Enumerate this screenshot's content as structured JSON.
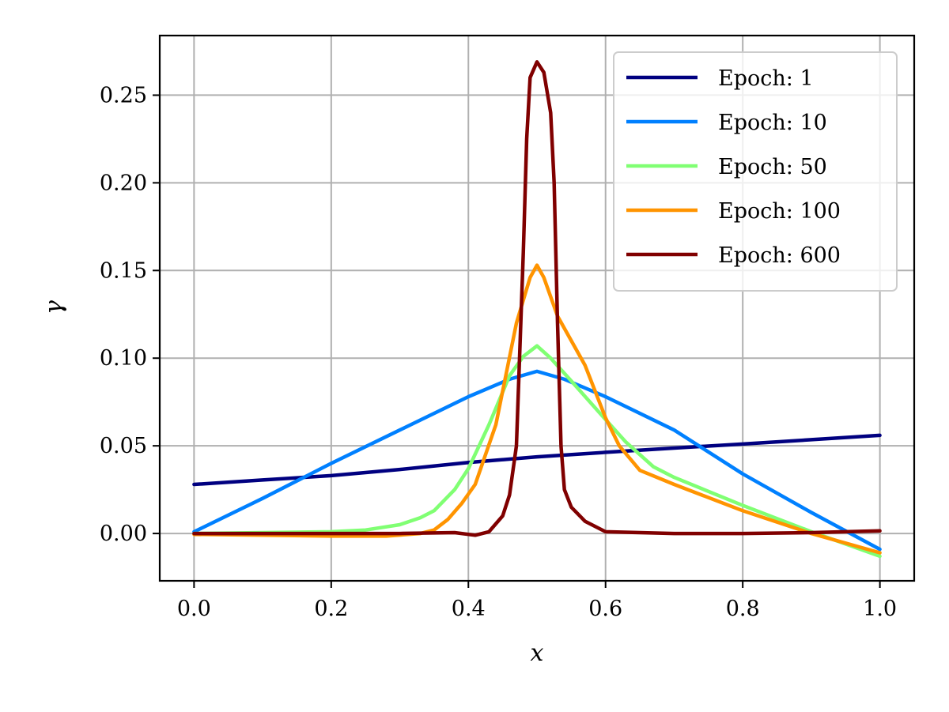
{
  "chart_data": {
    "type": "line",
    "xlabel": "x",
    "ylabel": "γ",
    "xlim": [
      -0.05,
      1.05
    ],
    "ylim": [
      -0.027,
      0.284
    ],
    "xticks": [
      "0.0",
      "0.2",
      "0.4",
      "0.6",
      "0.8",
      "1.0"
    ],
    "yticks": [
      "0.00",
      "0.05",
      "0.10",
      "0.15",
      "0.20",
      "0.25"
    ],
    "grid": true,
    "legend_position": "top-right",
    "series": [
      {
        "name": "Epoch: 1",
        "color": "#000080",
        "points": [
          [
            0.0,
            0.028
          ],
          [
            0.1,
            0.0305
          ],
          [
            0.2,
            0.033
          ],
          [
            0.3,
            0.0365
          ],
          [
            0.4,
            0.0405
          ],
          [
            0.5,
            0.0437
          ],
          [
            0.6,
            0.0463
          ],
          [
            0.7,
            0.0487
          ],
          [
            0.8,
            0.051
          ],
          [
            0.9,
            0.0535
          ],
          [
            1.0,
            0.056
          ]
        ]
      },
      {
        "name": "Epoch: 10",
        "color": "#0080ff",
        "points": [
          [
            0.0,
            0.001
          ],
          [
            0.1,
            0.02
          ],
          [
            0.2,
            0.04
          ],
          [
            0.3,
            0.059
          ],
          [
            0.4,
            0.078
          ],
          [
            0.46,
            0.088
          ],
          [
            0.5,
            0.0925
          ],
          [
            0.54,
            0.088
          ],
          [
            0.6,
            0.078
          ],
          [
            0.7,
            0.059
          ],
          [
            0.8,
            0.034
          ],
          [
            0.9,
            0.012
          ],
          [
            1.0,
            -0.009
          ]
        ]
      },
      {
        "name": "Epoch: 50",
        "color": "#80ff73",
        "points": [
          [
            0.0,
            0.0
          ],
          [
            0.1,
            0.0005
          ],
          [
            0.2,
            0.001
          ],
          [
            0.25,
            0.002
          ],
          [
            0.3,
            0.005
          ],
          [
            0.33,
            0.009
          ],
          [
            0.35,
            0.013
          ],
          [
            0.38,
            0.025
          ],
          [
            0.4,
            0.037
          ],
          [
            0.43,
            0.062
          ],
          [
            0.46,
            0.09
          ],
          [
            0.48,
            0.101
          ],
          [
            0.5,
            0.107
          ],
          [
            0.52,
            0.1
          ],
          [
            0.55,
            0.087
          ],
          [
            0.6,
            0.065
          ],
          [
            0.63,
            0.052
          ],
          [
            0.67,
            0.038
          ],
          [
            0.7,
            0.032
          ],
          [
            0.8,
            0.016
          ],
          [
            0.9,
            0.001
          ],
          [
            1.0,
            -0.013
          ]
        ]
      },
      {
        "name": "Epoch: 100",
        "color": "#ff9400",
        "points": [
          [
            0.0,
            -0.0005
          ],
          [
            0.1,
            -0.001
          ],
          [
            0.2,
            -0.0015
          ],
          [
            0.28,
            -0.0015
          ],
          [
            0.33,
            0.0
          ],
          [
            0.35,
            0.002
          ],
          [
            0.37,
            0.008
          ],
          [
            0.39,
            0.017
          ],
          [
            0.41,
            0.028
          ],
          [
            0.44,
            0.062
          ],
          [
            0.47,
            0.12
          ],
          [
            0.49,
            0.146
          ],
          [
            0.5,
            0.153
          ],
          [
            0.51,
            0.146
          ],
          [
            0.53,
            0.124
          ],
          [
            0.57,
            0.096
          ],
          [
            0.6,
            0.066
          ],
          [
            0.62,
            0.05
          ],
          [
            0.65,
            0.036
          ],
          [
            0.7,
            0.028
          ],
          [
            0.8,
            0.013
          ],
          [
            0.9,
            0.0
          ],
          [
            1.0,
            -0.011
          ]
        ]
      },
      {
        "name": "Epoch: 600",
        "color": "#800000",
        "points": [
          [
            0.0,
            0.0
          ],
          [
            0.1,
            0.0
          ],
          [
            0.2,
            0.0
          ],
          [
            0.3,
            0.0
          ],
          [
            0.38,
            0.0005
          ],
          [
            0.41,
            -0.001
          ],
          [
            0.43,
            0.001
          ],
          [
            0.45,
            0.01
          ],
          [
            0.46,
            0.022
          ],
          [
            0.47,
            0.05
          ],
          [
            0.48,
            0.16
          ],
          [
            0.485,
            0.225
          ],
          [
            0.49,
            0.26
          ],
          [
            0.5,
            0.269
          ],
          [
            0.51,
            0.263
          ],
          [
            0.52,
            0.24
          ],
          [
            0.525,
            0.2
          ],
          [
            0.53,
            0.12
          ],
          [
            0.535,
            0.05
          ],
          [
            0.54,
            0.025
          ],
          [
            0.55,
            0.015
          ],
          [
            0.57,
            0.007
          ],
          [
            0.6,
            0.001
          ],
          [
            0.7,
            0.0
          ],
          [
            0.8,
            0.0
          ],
          [
            0.9,
            0.0005
          ],
          [
            1.0,
            0.0015
          ]
        ]
      }
    ]
  }
}
